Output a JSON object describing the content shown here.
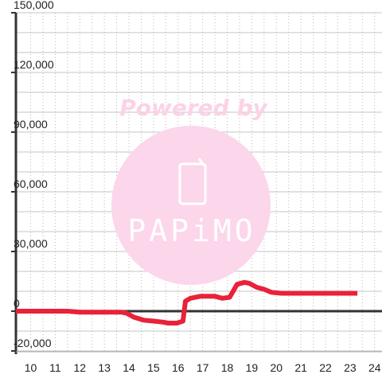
{
  "chart_data": {
    "type": "line",
    "title": "",
    "xlabel": "",
    "ylabel": "",
    "xlim": [
      9.4,
      24.3
    ],
    "ylim": [
      -20000,
      150000
    ],
    "x_ticks": [
      10,
      11,
      12,
      13,
      14,
      15,
      16,
      17,
      18,
      19,
      20,
      21,
      22,
      23,
      24
    ],
    "x_tick_labels": [
      "10",
      "11",
      "12",
      "13",
      "14",
      "15",
      "16",
      "17",
      "18",
      "19",
      "20",
      "21",
      "22",
      "23",
      "24"
    ],
    "y_ticks": [
      -20000,
      0,
      30000,
      60000,
      90000,
      120000,
      150000
    ],
    "y_tick_labels": [
      "-20,000",
      "0",
      "30,000",
      "60,000",
      "90,000",
      "120,000",
      "150,000"
    ],
    "grid": true,
    "legend": "none",
    "line_color": "#e8223a",
    "series": [
      {
        "x": [
          9.4,
          11.5,
          12.0,
          13.7,
          13.9,
          14.2,
          14.6,
          15.0,
          15.4,
          15.6,
          15.95,
          16.2,
          16.3,
          16.5,
          16.9,
          17.5,
          17.8,
          18.1,
          18.4,
          18.7,
          18.9,
          19.2,
          19.5,
          19.8,
          20.2,
          20.6,
          21.5,
          22.5,
          23.3
        ],
        "y": [
          0,
          0,
          -500,
          -500,
          -1000,
          -3000,
          -4500,
          -5000,
          -5500,
          -6000,
          -6000,
          -5000,
          5000,
          6500,
          7500,
          7500,
          6500,
          7000,
          13500,
          14500,
          14000,
          12000,
          11000,
          9500,
          9000,
          9000,
          9000,
          9000,
          9000
        ]
      }
    ]
  },
  "watermark": {
    "text": "Powered by",
    "brand": "PAPiMO",
    "text_color": "#fcd2e6",
    "circle_color": "#fcd6ea"
  }
}
